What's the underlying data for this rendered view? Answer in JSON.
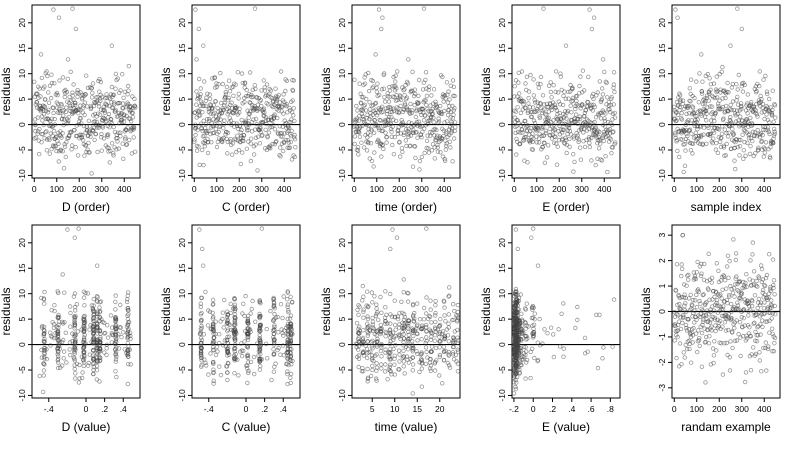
{
  "chart_data": [
    {
      "type": "scatter",
      "xlabel": "D (order)",
      "ylabel": "residuals",
      "xlim": [
        -10,
        470
      ],
      "ylim": [
        -10.5,
        23.5
      ],
      "x_ticks": [
        0,
        100,
        200,
        300,
        400
      ],
      "y_ticks": [
        -10,
        -5,
        0,
        5,
        10,
        15,
        20
      ],
      "reference_line_y": 0,
      "grid": false,
      "n_points": 450,
      "x_kind": "index",
      "clusters": [],
      "outliers": [
        [
          85,
          22.6
        ],
        [
          110,
          21
        ],
        [
          170,
          22.8
        ],
        [
          185,
          18.8
        ],
        [
          150,
          12.8
        ],
        [
          30,
          13.8
        ],
        [
          345,
          15.5
        ]
      ]
    },
    {
      "type": "scatter",
      "xlabel": "C (order)",
      "ylabel": "residuals",
      "xlim": [
        -10,
        470
      ],
      "ylim": [
        -10.5,
        23.5
      ],
      "x_ticks": [
        0,
        100,
        200,
        300,
        400
      ],
      "y_ticks": [
        -10,
        -5,
        0,
        5,
        10,
        15,
        20
      ],
      "reference_line_y": 0,
      "grid": false,
      "n_points": 450,
      "x_kind": "index",
      "clusters": [],
      "outliers": [
        [
          5,
          22.6
        ],
        [
          20,
          18.8
        ],
        [
          40,
          15.5
        ],
        [
          270,
          22.8
        ],
        [
          10,
          12.8
        ]
      ]
    },
    {
      "type": "scatter",
      "xlabel": "time (order)",
      "ylabel": "residuals",
      "xlim": [
        -10,
        470
      ],
      "ylim": [
        -10.5,
        23.5
      ],
      "x_ticks": [
        0,
        100,
        200,
        300,
        400
      ],
      "y_ticks": [
        -10,
        -5,
        0,
        5,
        10,
        15,
        20
      ],
      "reference_line_y": 0,
      "grid": false,
      "n_points": 450,
      "x_kind": "index",
      "clusters": [],
      "outliers": [
        [
          110,
          22.6
        ],
        [
          125,
          21
        ],
        [
          120,
          18.8
        ],
        [
          95,
          13.8
        ],
        [
          310,
          22.8
        ],
        [
          240,
          12.8
        ]
      ]
    },
    {
      "type": "scatter",
      "xlabel": "E (order)",
      "ylabel": "residuals",
      "xlim": [
        -10,
        470
      ],
      "ylim": [
        -10.5,
        23.5
      ],
      "x_ticks": [
        0,
        100,
        200,
        300,
        400
      ],
      "y_ticks": [
        -10,
        -5,
        0,
        5,
        10,
        15,
        20
      ],
      "reference_line_y": 0,
      "grid": false,
      "n_points": 450,
      "x_kind": "index",
      "clusters": [],
      "outliers": [
        [
          130,
          22.8
        ],
        [
          335,
          22.6
        ],
        [
          355,
          21
        ],
        [
          345,
          18.8
        ],
        [
          230,
          15.5
        ],
        [
          395,
          12.8
        ]
      ]
    },
    {
      "type": "scatter",
      "xlabel": "sample index",
      "ylabel": "residuals",
      "xlim": [
        -10,
        470
      ],
      "ylim": [
        -10.5,
        23.5
      ],
      "x_ticks": [
        0,
        100,
        200,
        300,
        400
      ],
      "y_ticks": [
        -10,
        -5,
        0,
        5,
        10,
        15,
        20
      ],
      "reference_line_y": 0,
      "grid": false,
      "n_points": 450,
      "x_kind": "index",
      "clusters": [],
      "outliers": [
        [
          5,
          22.6
        ],
        [
          15,
          21
        ],
        [
          280,
          22.8
        ],
        [
          300,
          18.8
        ],
        [
          120,
          13.8
        ],
        [
          250,
          15.5
        ]
      ]
    },
    {
      "type": "scatter",
      "xlabel": "D (value)",
      "ylabel": "residuals",
      "xlim": [
        -0.58,
        0.58
      ],
      "ylim": [
        -10.5,
        23.5
      ],
      "x_ticks": [
        -0.4,
        0,
        0.2,
        0.4
      ],
      "y_ticks": [
        -10,
        -5,
        0,
        5,
        10,
        15,
        20
      ],
      "reference_line_y": 0,
      "grid": false,
      "n_points": 450,
      "x_kind": "clustered",
      "x_range": [
        -0.5,
        0.5
      ],
      "clusters": [
        -0.45,
        -0.3,
        -0.12,
        -0.02,
        0.08,
        0.12,
        0.15,
        0.32,
        0.45
      ],
      "outliers": [
        [
          -0.2,
          22.6
        ],
        [
          -0.12,
          21
        ],
        [
          -0.08,
          22.8
        ],
        [
          0.12,
          15.5
        ],
        [
          -0.25,
          13.8
        ]
      ]
    },
    {
      "type": "scatter",
      "xlabel": "C (value)",
      "ylabel": "residuals",
      "xlim": [
        -0.58,
        0.58
      ],
      "ylim": [
        -10.5,
        23.5
      ],
      "x_ticks": [
        -0.4,
        0,
        0.2,
        0.4
      ],
      "y_ticks": [
        -10,
        -5,
        0,
        5,
        10,
        15,
        20
      ],
      "reference_line_y": 0,
      "grid": false,
      "n_points": 450,
      "x_kind": "clustered",
      "x_range": [
        -0.5,
        0.5
      ],
      "clusters": [
        -0.48,
        -0.35,
        -0.2,
        -0.12,
        0.02,
        0.15,
        0.3,
        0.45,
        0.48
      ],
      "outliers": [
        [
          -0.5,
          22.6
        ],
        [
          -0.47,
          18.8
        ],
        [
          -0.46,
          15.5
        ],
        [
          0.17,
          22.8
        ]
      ]
    },
    {
      "type": "scatter",
      "xlabel": "time (value)",
      "ylabel": "residuals",
      "xlim": [
        0.5,
        24.5
      ],
      "ylim": [
        -10.5,
        23.5
      ],
      "x_ticks": [
        5,
        10,
        15,
        20
      ],
      "y_ticks": [
        -10,
        -5,
        0,
        5,
        10,
        15,
        20
      ],
      "reference_line_y": 0,
      "grid": false,
      "n_points": 450,
      "x_kind": "clustered",
      "x_range": [
        1,
        24
      ],
      "clusters": [
        2,
        3,
        4,
        5,
        6,
        7,
        8,
        9,
        10,
        11,
        12,
        13,
        14,
        15,
        16,
        17,
        18,
        19,
        20,
        21,
        22,
        23,
        24
      ],
      "outliers": [
        [
          9.5,
          22.6
        ],
        [
          10.5,
          21
        ],
        [
          9,
          18.8
        ],
        [
          17,
          22.8
        ],
        [
          12,
          12.8
        ]
      ]
    },
    {
      "type": "scatter",
      "xlabel": "E (value)",
      "ylabel": "residuals",
      "xlim": [
        -0.22,
        0.9
      ],
      "ylim": [
        -10.5,
        23.5
      ],
      "x_ticks": [
        -0.2,
        0,
        0.2,
        0.4,
        0.6,
        0.8
      ],
      "y_ticks": [
        -10,
        -5,
        0,
        5,
        10,
        15,
        20
      ],
      "reference_line_y": 0,
      "grid": false,
      "n_points": 450,
      "x_kind": "skewed",
      "x_range": [
        -0.2,
        0.85
      ],
      "clusters": [
        -0.19,
        -0.17,
        -0.15,
        -0.12,
        -0.08,
        0.0
      ],
      "outliers": [
        [
          -0.18,
          22.6
        ],
        [
          -0.02,
          21
        ],
        [
          0.0,
          22.8
        ],
        [
          -0.16,
          18.8
        ],
        [
          0.05,
          15.5
        ]
      ]
    },
    {
      "type": "scatter",
      "xlabel": "randam example",
      "ylabel": "residuals",
      "xlim": [
        -10,
        470
      ],
      "ylim": [
        -3.4,
        3.4
      ],
      "x_ticks": [
        0,
        100,
        200,
        300,
        400
      ],
      "y_ticks": [
        -3,
        -2,
        -1,
        0,
        1,
        2,
        3
      ],
      "reference_line_y": 0,
      "grid": false,
      "n_points": 450,
      "x_kind": "index",
      "distribution": "normal",
      "clusters": [],
      "outliers": []
    }
  ]
}
